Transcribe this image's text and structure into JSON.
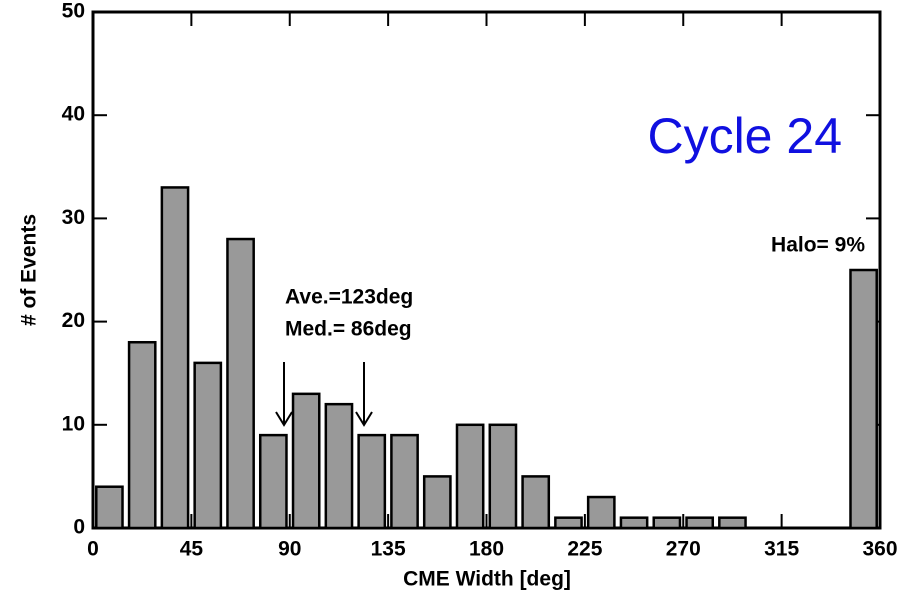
{
  "chart_data": {
    "type": "histogram",
    "xlabel": "CME Width [deg]",
    "ylabel": "# of Events",
    "annotations": [
      "Cycle 24",
      "Halo= 9%",
      "Ave.=123deg",
      "Med.= 86deg"
    ],
    "bins": [
      0,
      15,
      30,
      45,
      60,
      75,
      90,
      105,
      120,
      135,
      150,
      165,
      180,
      195,
      210,
      225,
      240,
      255,
      270,
      285,
      300,
      315,
      330,
      345,
      360
    ],
    "values": [
      4,
      18,
      33,
      16,
      28,
      9,
      13,
      12,
      9,
      9,
      5,
      10,
      10,
      5,
      1,
      3,
      1,
      1,
      1,
      1,
      0,
      0,
      0,
      25
    ],
    "color": "#999999",
    "xlim": [
      0,
      360
    ],
    "xticks": [
      0,
      45,
      90,
      135,
      180,
      225,
      270,
      315,
      360
    ],
    "ylim": [
      0,
      50
    ],
    "yticks": [
      0,
      10,
      20,
      30,
      40,
      50
    ]
  }
}
